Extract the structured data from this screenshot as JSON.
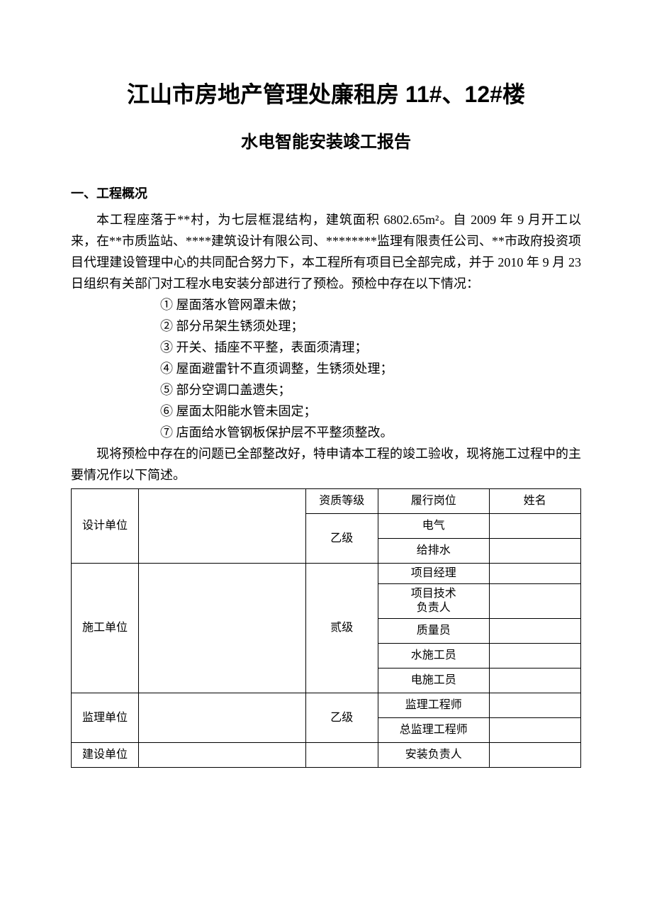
{
  "title_main": "江山市房地产管理处廉租房 11#、12#楼",
  "title_sub": "水电智能安装竣工报告",
  "section1_heading": "一、工程概况",
  "overview_para": "本工程座落于**村，为七层框混结构，建筑面积 6802.65m²。自 2009 年 9 月开工以来，在**市质监站、****建筑设计有限公司、********监理有限责任公司、**市政府投资项目代理建设管理中心的共同配合努力下，本工程所有项目已全部完成，并于 2010 年 9 月 23 日组织有关部门对工程水电安装分部进行了预检。预检中存在以下情况：",
  "defects": [
    "① 屋面落水管网罩未做；",
    "② 部分吊架生锈须处理；",
    "③ 开关、插座不平整，表面须清理；",
    "④ 屋面避雷针不直须调整，生锈须处理；",
    "⑤ 部分空调口盖遗失；",
    "⑥ 屋面太阳能水管未固定；",
    "⑦ 店面给水管钢板保护层不平整须整改。"
  ],
  "closing_para": "现将预检中存在的问题已全部整改好，特申请本工程的竣工验收，现将施工过程中的主要情况作以下简述。",
  "table": {
    "header": {
      "qual": "资质等级",
      "post": "履行岗位",
      "name": "姓名"
    },
    "groups": [
      {
        "unit_label": "设计单位",
        "qual": "乙级",
        "rows": [
          {
            "post": "电气",
            "name": ""
          },
          {
            "post": "给排水",
            "name": ""
          }
        ]
      },
      {
        "unit_label": "施工单位",
        "qual": "贰级",
        "rows": [
          {
            "post": "项目经理",
            "name": ""
          },
          {
            "post": "项目技术\n负责人",
            "name": ""
          },
          {
            "post": "质量员",
            "name": ""
          },
          {
            "post": "水施工员",
            "name": ""
          },
          {
            "post": "电施工员",
            "name": ""
          }
        ]
      },
      {
        "unit_label": "监理单位",
        "qual": "乙级",
        "rows": [
          {
            "post": "监理工程师",
            "name": ""
          },
          {
            "post": "总监理工程师",
            "name": ""
          }
        ]
      },
      {
        "unit_label": "建设单位",
        "qual": "",
        "rows": [
          {
            "post": "安装负责人",
            "name": ""
          }
        ]
      }
    ]
  }
}
